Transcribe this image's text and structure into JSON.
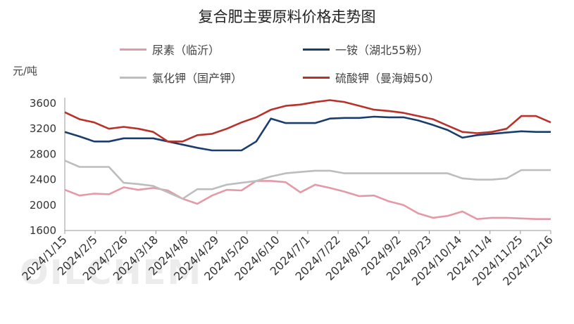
{
  "chart_data": {
    "type": "line",
    "title": "复合肥主要原料价格走势图",
    "ylabel": "元/吨",
    "xlabel": "",
    "ylim": [
      1600,
      3600
    ],
    "yticks": [
      1600,
      2000,
      2400,
      2800,
      3200,
      3600
    ],
    "grid": false,
    "legend": "top",
    "x_tick_labels": [
      "2024/1/15",
      "2024/2/5",
      "2024/2/26",
      "2024/3/18",
      "2024/4/8",
      "2024/4/29",
      "2024/5/20",
      "2024/6/10",
      "2024/7/1",
      "2024/7/22",
      "2024/8/12",
      "2024/9/2",
      "2024/9/23",
      "2024/10/14",
      "2024/11/4",
      "2024/11/25",
      "2024/12/16"
    ],
    "series": [
      {
        "name": "尿素（临沂）",
        "color": "#e49aa6",
        "values": [
          2240,
          2150,
          2180,
          2170,
          2280,
          2240,
          2270,
          2230,
          2100,
          2020,
          2150,
          2240,
          2230,
          2380,
          2380,
          2360,
          2200,
          2320,
          2270,
          2210,
          2140,
          2150,
          2060,
          2000,
          1870,
          1800,
          1830,
          1900,
          1780,
          1800,
          1800,
          1790,
          1780,
          1780
        ]
      },
      {
        "name": "一铵（湖北55粉）",
        "color": "#1b3d6e",
        "values": [
          3150,
          3080,
          3000,
          3000,
          3050,
          3050,
          3050,
          3000,
          2950,
          2900,
          2860,
          2860,
          2860,
          3000,
          3360,
          3290,
          3290,
          3290,
          3360,
          3370,
          3370,
          3390,
          3380,
          3380,
          3330,
          3260,
          3180,
          3060,
          3100,
          3120,
          3140,
          3160,
          3150,
          3150
        ]
      },
      {
        "name": "氯化钾（国产钾）",
        "color": "#bdbdbd",
        "values": [
          2700,
          2600,
          2600,
          2600,
          2350,
          2330,
          2300,
          2200,
          2100,
          2250,
          2250,
          2320,
          2350,
          2380,
          2450,
          2500,
          2520,
          2540,
          2540,
          2500,
          2500,
          2500,
          2500,
          2500,
          2500,
          2500,
          2500,
          2420,
          2400,
          2400,
          2420,
          2550,
          2550,
          2550
        ]
      },
      {
        "name": "硫酸钾（曼海姆50）",
        "color": "#b8322b",
        "values": [
          3460,
          3350,
          3300,
          3200,
          3230,
          3200,
          3150,
          3000,
          3000,
          3100,
          3120,
          3200,
          3300,
          3380,
          3500,
          3560,
          3580,
          3620,
          3650,
          3620,
          3560,
          3500,
          3480,
          3450,
          3400,
          3350,
          3250,
          3150,
          3130,
          3150,
          3200,
          3400,
          3400,
          3300
        ]
      }
    ]
  },
  "watermark": "OILCHEM"
}
